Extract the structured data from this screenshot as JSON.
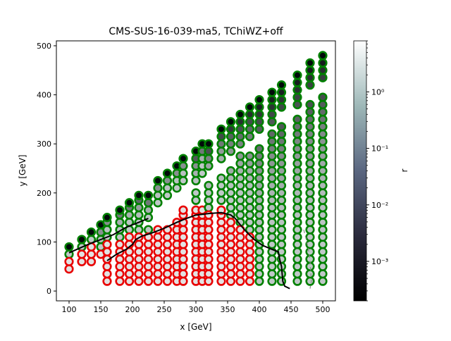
{
  "chart_data": {
    "type": "scatter",
    "title": "CMS-SUS-16-039-ma5, TChiWZ+off",
    "xlabel": "x [GeV]",
    "ylabel": "y [GeV]",
    "xlim": [
      80,
      520
    ],
    "ylim": [
      -20,
      510
    ],
    "xticks": [
      100,
      150,
      200,
      250,
      300,
      350,
      400,
      450,
      500
    ],
    "yticks": [
      0,
      100,
      200,
      300,
      400,
      500
    ],
    "colorbar": {
      "label": "r",
      "scale": "log",
      "range": [
        0.0002,
        8
      ],
      "ticks": [
        {
          "value": 0.001,
          "label": "10⁻³"
        },
        {
          "value": 0.01,
          "label": "10⁻²"
        },
        {
          "value": 0.1,
          "label": "10⁻¹"
        },
        {
          "value": 1,
          "label": "10⁰"
        }
      ]
    },
    "grid": false,
    "colors": {
      "allowed_edge": "#008000",
      "excluded_edge": "#e80000",
      "contour": "#000000",
      "contour_dashed": "#8c8c8c"
    },
    "series": [
      {
        "marker": "circle",
        "columns": [
          {
            "x": 100,
            "excluded_y": [
              45,
              60
            ],
            "allowed_y": [
              75,
              90
            ]
          },
          {
            "x": 120,
            "excluded_y": [
              60,
              75
            ],
            "allowed_y": [
              90,
              105
            ]
          },
          {
            "x": 135,
            "excluded_y": [
              60,
              75,
              90
            ],
            "allowed_y": [
              105,
              120
            ]
          },
          {
            "x": 150,
            "excluded_y": [
              75
            ],
            "allowed_y": [
              90,
              105,
              120,
              135
            ]
          },
          {
            "x": 160,
            "excluded_y": [
              20,
              35,
              50,
              65,
              80,
              95
            ],
            "allowed_y": [
              110,
              125,
              140,
              150
            ]
          },
          {
            "x": 180,
            "excluded_y": [
              20,
              35,
              50,
              65,
              80,
              95
            ],
            "allowed_y": [
              110,
              125,
              140,
              155,
              165
            ]
          },
          {
            "x": 195,
            "excluded_y": [
              20,
              35,
              50,
              65,
              80,
              95,
              110
            ],
            "allowed_y": [
              125,
              140,
              155,
              170,
              180
            ]
          },
          {
            "x": 210,
            "excluded_y": [
              20,
              35,
              50,
              65,
              80,
              95,
              110
            ],
            "allowed_y": [
              125,
              140,
              155,
              170,
              185,
              195
            ]
          },
          {
            "x": 225,
            "excluded_y": [
              20,
              35,
              50,
              65,
              80,
              95,
              110
            ],
            "allowed_y": [
              125,
              150,
              165,
              180,
              195
            ]
          },
          {
            "x": 240,
            "excluded_y": [
              20,
              35,
              50,
              65,
              80,
              95,
              110,
              125
            ],
            "allowed_y": [
              180,
              195,
              210,
              225
            ]
          },
          {
            "x": 255,
            "excluded_y": [
              20,
              35,
              50,
              65,
              80,
              95,
              110,
              125
            ],
            "allowed_y": [
              195,
              210,
              225,
              240
            ]
          },
          {
            "x": 270,
            "excluded_y": [
              20,
              35,
              50,
              65,
              80,
              95,
              110,
              125,
              140
            ],
            "allowed_y": [
              210,
              225,
              240,
              255
            ]
          },
          {
            "x": 280,
            "excluded_y": [
              20,
              35,
              50,
              65,
              80,
              95,
              110,
              125,
              140,
              155,
              165
            ],
            "allowed_y": [
              225,
              240,
              255,
              270
            ]
          },
          {
            "x": 300,
            "excluded_y": [
              20,
              35,
              50,
              65,
              80,
              95,
              110,
              125,
              140,
              155,
              165
            ],
            "allowed_y": [
              185,
              200,
              225,
              240,
              255,
              270,
              285
            ]
          },
          {
            "x": 310,
            "excluded_y": [
              20,
              35,
              50,
              65,
              80,
              95,
              110,
              125,
              140,
              155,
              165
            ],
            "allowed_y": [
              240,
              255,
              270,
              285,
              300
            ]
          },
          {
            "x": 320,
            "excluded_y": [
              20,
              35,
              50,
              65,
              80,
              95,
              110,
              125,
              140,
              155
            ],
            "allowed_y": [
              170,
              185,
              200,
              215,
              255,
              270,
              285,
              300
            ]
          },
          {
            "x": 340,
            "excluded_y": [
              20,
              35,
              50,
              65,
              80,
              95,
              110,
              125,
              140,
              155,
              165
            ],
            "allowed_y": [
              185,
              200,
              215,
              230,
              270,
              285,
              300,
              315,
              330
            ]
          },
          {
            "x": 355,
            "excluded_y": [
              20,
              35,
              50,
              65,
              80,
              95,
              110,
              125,
              140
            ],
            "allowed_y": [
              155,
              170,
              185,
              200,
              215,
              230,
              245,
              285,
              300,
              315,
              330,
              345
            ]
          },
          {
            "x": 370,
            "excluded_y": [
              20,
              35,
              50,
              65,
              80,
              95,
              110,
              125
            ],
            "allowed_y": [
              140,
              155,
              170,
              185,
              200,
              215,
              230,
              245,
              260,
              275,
              300,
              315,
              330,
              345,
              360
            ]
          },
          {
            "x": 385,
            "excluded_y": [
              20,
              35,
              50,
              65,
              80,
              95,
              110
            ],
            "allowed_y": [
              125,
              140,
              155,
              170,
              185,
              200,
              215,
              230,
              245,
              260,
              275,
              315,
              330,
              345,
              360,
              375
            ]
          },
          {
            "x": 400,
            "excluded_y": [],
            "allowed_y": [
              20,
              35,
              50,
              65,
              80,
              95,
              110,
              125,
              140,
              155,
              170,
              185,
              200,
              215,
              230,
              245,
              260,
              275,
              290,
              330,
              345,
              360,
              375,
              390
            ]
          },
          {
            "x": 420,
            "excluded_y": [],
            "allowed_y": [
              20,
              35,
              50,
              65,
              80,
              95,
              110,
              125,
              140,
              155,
              170,
              185,
              200,
              215,
              230,
              245,
              260,
              275,
              290,
              305,
              320,
              345,
              360,
              375,
              390,
              405
            ]
          },
          {
            "x": 435,
            "excluded_y": [],
            "allowed_y": [
              20,
              35,
              50,
              65,
              80,
              95,
              110,
              125,
              140,
              155,
              170,
              185,
              200,
              215,
              230,
              245,
              260,
              275,
              290,
              305,
              320,
              335,
              375,
              390,
              405,
              420
            ]
          },
          {
            "x": 460,
            "excluded_y": [],
            "allowed_y": [
              20,
              35,
              50,
              65,
              80,
              95,
              110,
              125,
              140,
              155,
              170,
              185,
              200,
              215,
              230,
              245,
              260,
              275,
              290,
              305,
              320,
              335,
              350,
              380,
              395,
              410,
              425,
              440
            ]
          },
          {
            "x": 480,
            "excluded_y": [],
            "allowed_y": [
              20,
              35,
              50,
              65,
              80,
              95,
              110,
              125,
              140,
              155,
              170,
              185,
              200,
              215,
              230,
              245,
              260,
              275,
              290,
              305,
              320,
              335,
              350,
              365,
              380,
              420,
              435,
              450,
              465
            ]
          },
          {
            "x": 500,
            "excluded_y": [],
            "allowed_y": [
              20,
              35,
              50,
              65,
              80,
              95,
              110,
              125,
              140,
              155,
              170,
              185,
              200,
              215,
              230,
              245,
              260,
              275,
              290,
              305,
              320,
              335,
              350,
              365,
              380,
              395,
              435,
              450,
              465,
              480
            ]
          }
        ]
      }
    ],
    "contours": [
      {
        "style": "solid",
        "points": [
          [
            100,
            78
          ],
          [
            130,
            95
          ],
          [
            150,
            105
          ],
          [
            170,
            115
          ],
          [
            190,
            130
          ],
          [
            210,
            140
          ],
          [
            225,
            148
          ]
        ]
      },
      {
        "style": "solid",
        "points": [
          [
            160,
            62
          ],
          [
            175,
            75
          ],
          [
            190,
            85
          ],
          [
            200,
            95
          ],
          [
            205,
            105
          ],
          [
            215,
            112
          ],
          [
            230,
            118
          ],
          [
            250,
            128
          ],
          [
            270,
            140
          ],
          [
            285,
            148
          ],
          [
            300,
            155
          ],
          [
            320,
            158
          ],
          [
            340,
            160
          ],
          [
            355,
            155
          ],
          [
            362,
            148
          ],
          [
            370,
            135
          ],
          [
            380,
            120
          ],
          [
            392,
            105
          ],
          [
            405,
            93
          ],
          [
            420,
            85
          ],
          [
            430,
            80
          ],
          [
            432,
            65
          ],
          [
            435,
            50
          ],
          [
            436,
            35
          ],
          [
            437,
            20
          ],
          [
            440,
            10
          ],
          [
            448,
            5
          ]
        ]
      },
      {
        "style": "dashed",
        "points": [
          [
            470,
            125
          ],
          [
            475,
            100
          ],
          [
            478,
            80
          ],
          [
            480,
            60
          ],
          [
            481,
            40
          ],
          [
            482,
            20
          ],
          [
            480,
            5
          ]
        ]
      }
    ]
  }
}
